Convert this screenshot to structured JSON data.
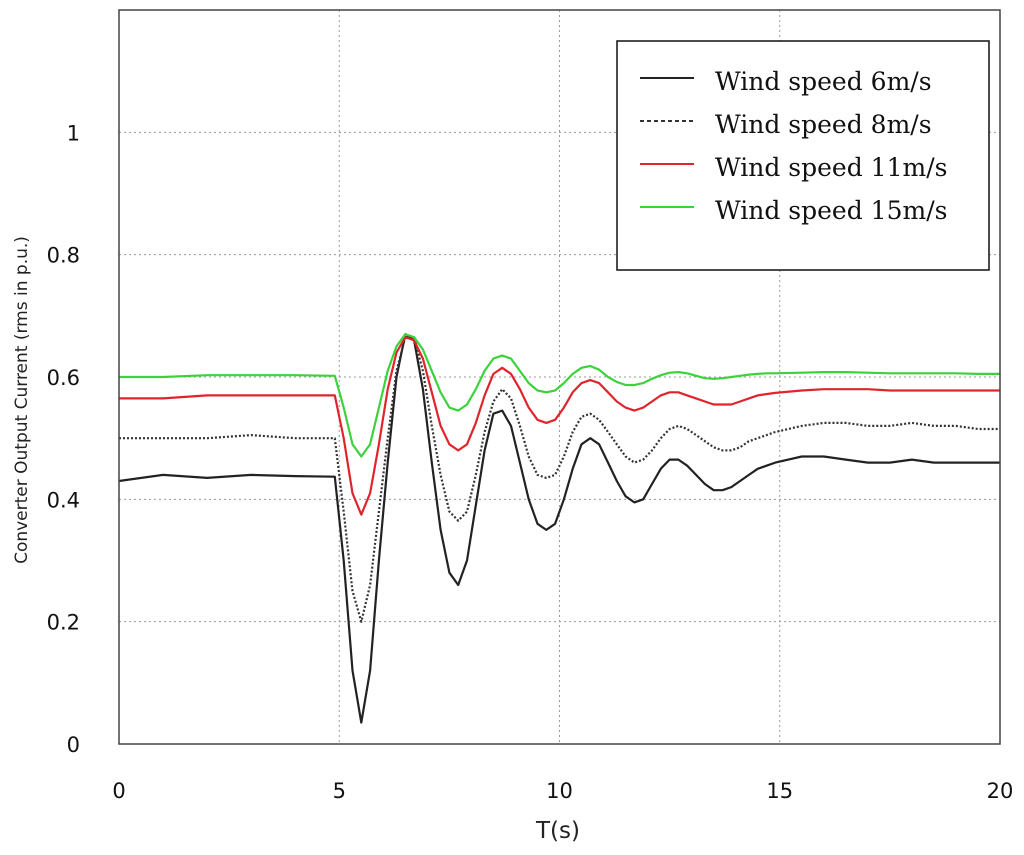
{
  "chart_data": {
    "type": "line",
    "xlabel": "T(s)",
    "ylabel": "Converter Output Current (rms in p.u.)",
    "xlim": [
      0,
      20
    ],
    "ylim": [
      0,
      1.2
    ],
    "xticks": [
      0,
      5,
      10,
      15,
      20
    ],
    "yticks": [
      0,
      0.2,
      0.4,
      0.6,
      0.8,
      1
    ],
    "xtick_labels": [
      "0",
      "5",
      "10",
      "15",
      "20"
    ],
    "ytick_labels": [
      "0",
      "0.2",
      "0.4",
      "0.6",
      "0.8",
      "1"
    ],
    "grid": true,
    "legend_position": "top-right",
    "series": [
      {
        "name": "Wind speed 6m/s",
        "color": "#222222",
        "style": "solid",
        "x": [
          0,
          1,
          2,
          3,
          4,
          4.9,
          5.1,
          5.3,
          5.5,
          5.7,
          5.9,
          6.1,
          6.3,
          6.5,
          6.7,
          6.9,
          7.1,
          7.3,
          7.5,
          7.7,
          7.9,
          8.1,
          8.3,
          8.5,
          8.7,
          8.9,
          9.1,
          9.3,
          9.5,
          9.7,
          9.9,
          10.1,
          10.3,
          10.5,
          10.7,
          10.9,
          11.1,
          11.3,
          11.5,
          11.7,
          11.9,
          12.1,
          12.3,
          12.5,
          12.7,
          12.9,
          13.1,
          13.3,
          13.5,
          13.7,
          13.9,
          14.1,
          14.3,
          14.5,
          14.7,
          14.9,
          15.5,
          16,
          16.5,
          17,
          17.5,
          18,
          18.5,
          19,
          19.5,
          20
        ],
        "y": [
          0.43,
          0.44,
          0.435,
          0.44,
          0.438,
          0.437,
          0.3,
          0.12,
          0.035,
          0.12,
          0.3,
          0.46,
          0.6,
          0.67,
          0.66,
          0.58,
          0.46,
          0.35,
          0.28,
          0.26,
          0.3,
          0.39,
          0.48,
          0.54,
          0.545,
          0.52,
          0.46,
          0.4,
          0.36,
          0.35,
          0.36,
          0.4,
          0.45,
          0.49,
          0.5,
          0.49,
          0.46,
          0.43,
          0.405,
          0.395,
          0.4,
          0.425,
          0.45,
          0.465,
          0.465,
          0.455,
          0.44,
          0.425,
          0.415,
          0.415,
          0.42,
          0.43,
          0.44,
          0.45,
          0.455,
          0.46,
          0.47,
          0.47,
          0.465,
          0.46,
          0.46,
          0.465,
          0.46,
          0.46,
          0.46,
          0.46
        ]
      },
      {
        "name": "Wind speed 8m/s",
        "color": "#333333",
        "style": "dotted",
        "x": [
          0,
          1,
          2,
          3,
          4,
          4.9,
          5.1,
          5.3,
          5.5,
          5.7,
          5.9,
          6.1,
          6.3,
          6.5,
          6.7,
          6.9,
          7.1,
          7.3,
          7.5,
          7.7,
          7.9,
          8.1,
          8.3,
          8.5,
          8.7,
          8.9,
          9.1,
          9.3,
          9.5,
          9.7,
          9.9,
          10.1,
          10.3,
          10.5,
          10.7,
          10.9,
          11.1,
          11.3,
          11.5,
          11.7,
          11.9,
          12.1,
          12.3,
          12.5,
          12.7,
          12.9,
          13.1,
          13.3,
          13.5,
          13.7,
          13.9,
          14.1,
          14.3,
          14.5,
          14.7,
          14.9,
          15.5,
          16,
          16.5,
          17,
          17.5,
          18,
          18.5,
          19,
          19.5,
          20
        ],
        "y": [
          0.5,
          0.5,
          0.5,
          0.505,
          0.5,
          0.5,
          0.38,
          0.25,
          0.2,
          0.26,
          0.38,
          0.5,
          0.61,
          0.665,
          0.665,
          0.61,
          0.52,
          0.44,
          0.38,
          0.365,
          0.38,
          0.44,
          0.51,
          0.56,
          0.58,
          0.565,
          0.52,
          0.47,
          0.44,
          0.435,
          0.44,
          0.47,
          0.51,
          0.535,
          0.54,
          0.53,
          0.51,
          0.49,
          0.47,
          0.46,
          0.465,
          0.48,
          0.5,
          0.515,
          0.52,
          0.515,
          0.505,
          0.495,
          0.485,
          0.48,
          0.48,
          0.485,
          0.495,
          0.5,
          0.505,
          0.51,
          0.52,
          0.525,
          0.525,
          0.52,
          0.52,
          0.525,
          0.52,
          0.52,
          0.515,
          0.515
        ]
      },
      {
        "name": "Wind speed 11m/s",
        "color": "#e0242c",
        "style": "solid",
        "x": [
          0,
          1,
          2,
          3,
          4,
          4.9,
          5.1,
          5.3,
          5.5,
          5.7,
          5.9,
          6.1,
          6.3,
          6.5,
          6.7,
          6.9,
          7.1,
          7.3,
          7.5,
          7.7,
          7.9,
          8.1,
          8.3,
          8.5,
          8.7,
          8.9,
          9.1,
          9.3,
          9.5,
          9.7,
          9.9,
          10.1,
          10.3,
          10.5,
          10.7,
          10.9,
          11.1,
          11.3,
          11.5,
          11.7,
          11.9,
          12.1,
          12.3,
          12.5,
          12.7,
          12.9,
          13.1,
          13.3,
          13.5,
          13.7,
          13.9,
          14.1,
          14.3,
          14.5,
          14.7,
          14.9,
          15.5,
          16,
          16.5,
          17,
          17.5,
          18,
          18.5,
          19,
          19.5,
          20
        ],
        "y": [
          0.565,
          0.565,
          0.57,
          0.57,
          0.57,
          0.57,
          0.5,
          0.41,
          0.375,
          0.41,
          0.49,
          0.58,
          0.64,
          0.665,
          0.66,
          0.63,
          0.575,
          0.52,
          0.49,
          0.48,
          0.49,
          0.525,
          0.57,
          0.605,
          0.615,
          0.605,
          0.58,
          0.55,
          0.53,
          0.525,
          0.53,
          0.55,
          0.575,
          0.59,
          0.595,
          0.59,
          0.575,
          0.56,
          0.55,
          0.545,
          0.55,
          0.56,
          0.57,
          0.575,
          0.575,
          0.57,
          0.565,
          0.56,
          0.555,
          0.555,
          0.555,
          0.56,
          0.565,
          0.57,
          0.572,
          0.574,
          0.578,
          0.58,
          0.58,
          0.58,
          0.578,
          0.578,
          0.578,
          0.578,
          0.578,
          0.578
        ]
      },
      {
        "name": "Wind speed 15m/s",
        "color": "#3cd23c",
        "style": "solid",
        "x": [
          0,
          1,
          2,
          3,
          4,
          4.9,
          5.1,
          5.3,
          5.5,
          5.7,
          5.9,
          6.1,
          6.3,
          6.5,
          6.7,
          6.9,
          7.1,
          7.3,
          7.5,
          7.7,
          7.9,
          8.1,
          8.3,
          8.5,
          8.7,
          8.9,
          9.1,
          9.3,
          9.5,
          9.7,
          9.9,
          10.1,
          10.3,
          10.5,
          10.7,
          10.9,
          11.1,
          11.3,
          11.5,
          11.7,
          11.9,
          12.1,
          12.3,
          12.5,
          12.7,
          12.9,
          13.1,
          13.3,
          13.5,
          13.7,
          13.9,
          14.1,
          14.3,
          14.5,
          14.7,
          14.9,
          15.5,
          16,
          16.5,
          17,
          17.5,
          18,
          18.5,
          19,
          19.5,
          20
        ],
        "y": [
          0.6,
          0.6,
          0.603,
          0.603,
          0.603,
          0.602,
          0.55,
          0.49,
          0.47,
          0.49,
          0.55,
          0.61,
          0.65,
          0.67,
          0.665,
          0.645,
          0.61,
          0.575,
          0.55,
          0.545,
          0.555,
          0.58,
          0.61,
          0.63,
          0.635,
          0.63,
          0.61,
          0.59,
          0.578,
          0.575,
          0.578,
          0.59,
          0.605,
          0.615,
          0.618,
          0.612,
          0.6,
          0.592,
          0.587,
          0.587,
          0.59,
          0.597,
          0.603,
          0.607,
          0.608,
          0.606,
          0.602,
          0.598,
          0.597,
          0.598,
          0.6,
          0.602,
          0.604,
          0.605,
          0.606,
          0.606,
          0.607,
          0.608,
          0.608,
          0.607,
          0.606,
          0.606,
          0.606,
          0.606,
          0.605,
          0.605
        ]
      }
    ]
  }
}
